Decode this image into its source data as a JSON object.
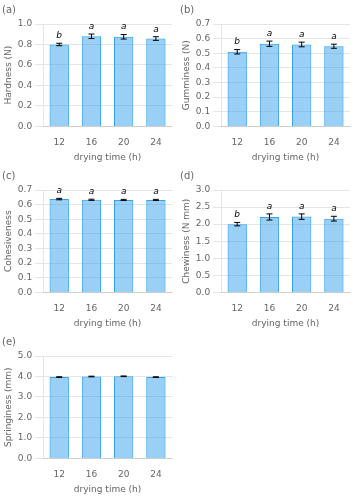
{
  "chart_data": [
    {
      "type": "bar",
      "title": "(a)",
      "categories": [
        "12",
        "16",
        "20",
        "24"
      ],
      "values": [
        0.8,
        0.88,
        0.875,
        0.858
      ],
      "errors": [
        0.012,
        0.022,
        0.022,
        0.018
      ],
      "annotations": [
        "b",
        "a",
        "a",
        "a"
      ],
      "xlabel": "drying time (h)",
      "ylabel": "Hardness (N)",
      "ylim": [
        0.0,
        1.0
      ],
      "yticks": [
        {
          "value": 0,
          "label": "0.0"
        },
        0.2,
        0.4,
        0.6,
        0.8,
        {
          "value": 1,
          "label": "1.0"
        }
      ],
      "grid": true
    },
    {
      "type": "bar",
      "title": "(b)",
      "categories": [
        "12",
        "16",
        "20",
        "24"
      ],
      "values": [
        0.51,
        0.565,
        0.56,
        0.548
      ],
      "errors": [
        0.015,
        0.018,
        0.016,
        0.014
      ],
      "annotations": [
        "b",
        "a",
        "a",
        "a"
      ],
      "xlabel": "drying time (h)",
      "ylabel": "Gumminess (N)",
      "ylim": [
        0.0,
        0.7
      ],
      "yticks": [
        {
          "value": 0,
          "label": "0.0"
        },
        0.1,
        0.2,
        0.3,
        0.4,
        0.5,
        0.6,
        0.7
      ],
      "grid": true
    },
    {
      "type": "bar",
      "title": "(c)",
      "categories": [
        "12",
        "16",
        "20",
        "24"
      ],
      "values": [
        0.638,
        0.633,
        0.632,
        0.632
      ],
      "errors": [
        0.005,
        0.004,
        0.004,
        0.004
      ],
      "annotations": [
        "a",
        "a",
        "a",
        "a"
      ],
      "xlabel": "drying time (h)",
      "ylabel": "Cohesiveness",
      "ylim": [
        0.0,
        0.7
      ],
      "yticks": [
        {
          "value": 0,
          "label": "0.0"
        },
        0.1,
        0.2,
        0.3,
        0.4,
        0.5,
        0.6,
        0.7
      ],
      "grid": true
    },
    {
      "type": "bar",
      "title": "(d)",
      "categories": [
        "12",
        "16",
        "20",
        "24"
      ],
      "values": [
        2.0,
        2.21,
        2.22,
        2.16
      ],
      "errors": [
        0.05,
        0.09,
        0.08,
        0.07
      ],
      "annotations": [
        "b",
        "a",
        "a",
        "a"
      ],
      "xlabel": "drying time (h)",
      "ylabel": "Chewiness (N mm)",
      "ylim": [
        0.0,
        3.0
      ],
      "yticks": [
        {
          "value": 0,
          "label": "0.0"
        },
        0.5,
        {
          "value": 1,
          "label": "1.0"
        },
        1.5,
        {
          "value": 2,
          "label": "2.0"
        },
        2.5,
        {
          "value": 3,
          "label": "3.0"
        }
      ],
      "grid": true
    },
    {
      "type": "bar",
      "title": "(e)",
      "categories": [
        "12",
        "16",
        "20",
        "24"
      ],
      "values": [
        3.97,
        4.0,
        4.01,
        3.97
      ],
      "errors": [
        0.018,
        0.015,
        0.015,
        0.016
      ],
      "xlabel": "drying time (h)",
      "ylabel": "Springiness (mm)",
      "ylim": [
        0.0,
        5.0
      ],
      "yticks": [
        {
          "value": 0,
          "label": "0.0"
        },
        {
          "value": 1,
          "label": "1.0"
        },
        {
          "value": 2,
          "label": "2.0"
        },
        {
          "value": 3,
          "label": "3.0"
        },
        {
          "value": 4,
          "label": "4.0"
        },
        {
          "value": 5,
          "label": "5.0"
        }
      ],
      "grid": true
    }
  ]
}
